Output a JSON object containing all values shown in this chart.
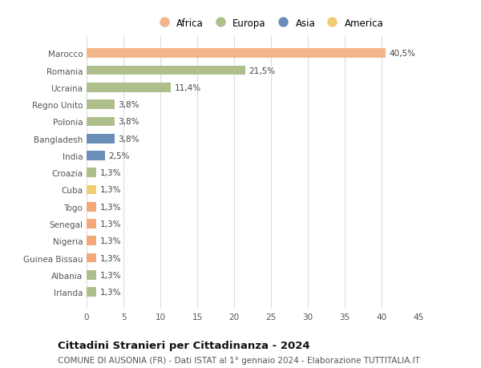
{
  "categories": [
    "Marocco",
    "Romania",
    "Ucraina",
    "Regno Unito",
    "Polonia",
    "Bangladesh",
    "India",
    "Croazia",
    "Cuba",
    "Togo",
    "Senegal",
    "Nigeria",
    "Guinea Bissau",
    "Albania",
    "Irlanda"
  ],
  "values": [
    40.5,
    21.5,
    11.4,
    3.8,
    3.8,
    3.8,
    2.5,
    1.3,
    1.3,
    1.3,
    1.3,
    1.3,
    1.3,
    1.3,
    1.3
  ],
  "labels": [
    "40,5%",
    "21,5%",
    "11,4%",
    "3,8%",
    "3,8%",
    "3,8%",
    "2,5%",
    "1,3%",
    "1,3%",
    "1,3%",
    "1,3%",
    "1,3%",
    "1,3%",
    "1,3%",
    "1,3%"
  ],
  "colors": [
    "#F2B48A",
    "#AEBF8C",
    "#AEBF8C",
    "#AEBF8C",
    "#AEBF8C",
    "#6B8EB8",
    "#6B8EB8",
    "#AEBF8C",
    "#F0CC72",
    "#F2A878",
    "#F2A878",
    "#F2A878",
    "#F2A878",
    "#AEBF8C",
    "#AEBF8C"
  ],
  "legend_labels": [
    "Africa",
    "Europa",
    "Asia",
    "America"
  ],
  "legend_colors": [
    "#F2B48A",
    "#AEBF8C",
    "#6B8EB8",
    "#F0CC72"
  ],
  "xlim": [
    0,
    45
  ],
  "xticks": [
    0,
    5,
    10,
    15,
    20,
    25,
    30,
    35,
    40,
    45
  ],
  "title": "Cittadini Stranieri per Cittadinanza - 2024",
  "subtitle": "COMUNE DI AUSONIA (FR) - Dati ISTAT al 1° gennaio 2024 - Elaborazione TUTTITALIA.IT",
  "bg_color": "#ffffff",
  "bar_height": 0.55,
  "title_fontsize": 9.5,
  "subtitle_fontsize": 7.5,
  "label_fontsize": 7.5,
  "tick_fontsize": 7.5,
  "legend_fontsize": 8.5
}
